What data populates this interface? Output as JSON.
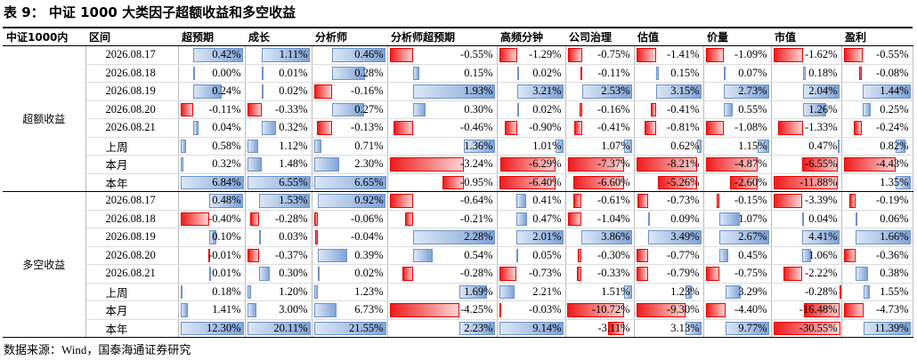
{
  "title": "表 9： 中证 1000 大类因子超额收益和多空收益",
  "table": {
    "header": [
      "中证1000内",
      "区间",
      "超预期",
      "成长",
      "分析师",
      "分析师超预期",
      "高频分钟",
      "公司治理",
      "估值",
      "价量",
      "市值",
      "盈利"
    ],
    "sections": [
      {
        "label": "超额收益",
        "rows": [
          [
            "2026.08.17",
            "0.42%",
            "1.11%",
            "0.46%",
            "-0.55%",
            "-1.29%",
            "-0.75%",
            "-1.41%",
            "-1.09%",
            "-1.62%",
            "-0.55%"
          ],
          [
            "2026.08.18",
            "0.00%",
            "0.01%",
            "0.28%",
            "0.15%",
            "0.02%",
            "-0.11%",
            "0.15%",
            "0.07%",
            "0.18%",
            "-0.08%"
          ],
          [
            "2026.08.19",
            "0.24%",
            "0.02%",
            "-0.16%",
            "1.93%",
            "3.21%",
            "2.53%",
            "3.15%",
            "2.73%",
            "2.04%",
            "1.44%"
          ],
          [
            "2026.08.20",
            "-0.11%",
            "-0.33%",
            "0.27%",
            "0.30%",
            "0.02%",
            "-0.16%",
            "-0.41%",
            "0.55%",
            "1.26%",
            "0.25%"
          ],
          [
            "2026.08.21",
            "0.04%",
            "0.32%",
            "-0.13%",
            "-0.46%",
            "-0.90%",
            "-0.41%",
            "-0.81%",
            "-1.08%",
            "-1.33%",
            "-0.24%"
          ],
          [
            "上周",
            "0.58%",
            "1.12%",
            "0.71%",
            "1.36%",
            "1.01%",
            "1.07%",
            "0.62%",
            "1.15%",
            "0.47%",
            "0.82%"
          ],
          [
            "本月",
            "0.32%",
            "1.48%",
            "2.30%",
            "-3.24%",
            "-6.29%",
            "-7.37%",
            "-8.21%",
            "-4.87%",
            "-6.55%",
            "-4.43%"
          ],
          [
            "本年",
            "6.84%",
            "6.55%",
            "6.65%",
            "-0.95%",
            "-6.40%",
            "-6.60%",
            "-5.26%",
            "-2.60%",
            "-11.88%",
            "1.35%"
          ]
        ]
      },
      {
        "label": "多空收益",
        "rows": [
          [
            "2026.08.17",
            "0.48%",
            "1.53%",
            "0.92%",
            "-0.64%",
            "0.41%",
            "-0.61%",
            "-0.73%",
            "-0.15%",
            "-3.39%",
            "-0.19%"
          ],
          [
            "2026.08.18",
            "-0.40%",
            "-0.28%",
            "-0.06%",
            "-0.21%",
            "0.47%",
            "-1.04%",
            "0.09%",
            "1.07%",
            "0.04%",
            "0.06%"
          ],
          [
            "2026.08.19",
            "0.10%",
            "0.03%",
            "-0.04%",
            "2.28%",
            "2.01%",
            "3.86%",
            "3.49%",
            "2.67%",
            "4.41%",
            "1.66%"
          ],
          [
            "2026.08.20",
            "-0.01%",
            "-0.37%",
            "0.39%",
            "0.54%",
            "0.05%",
            "-0.30%",
            "-0.77%",
            "0.45%",
            "1.06%",
            "-0.36%"
          ],
          [
            "2026.08.21",
            "0.01%",
            "0.30%",
            "0.02%",
            "-0.28%",
            "-0.73%",
            "-0.33%",
            "-0.79%",
            "-0.75%",
            "-2.22%",
            "0.38%"
          ],
          [
            "上周",
            "0.18%",
            "1.20%",
            "1.23%",
            "1.69%",
            "2.21%",
            "1.51%",
            "1.23%",
            "3.29%",
            "-0.28%",
            "1.55%"
          ],
          [
            "本月",
            "1.41%",
            "3.00%",
            "6.73%",
            "-4.25%",
            "-0.03%",
            "-10.72%",
            "-9.30%",
            "-4.40%",
            "-16.48%",
            "-4.73%"
          ],
          [
            "本年",
            "12.30%",
            "20.11%",
            "21.55%",
            "2.23%",
            "9.14%",
            "-3.11%",
            "3.13%",
            "9.77%",
            "-30.55%",
            "11.39%"
          ]
        ]
      }
    ]
  },
  "source": "数据来源：Wind，国泰海通证券研究"
}
